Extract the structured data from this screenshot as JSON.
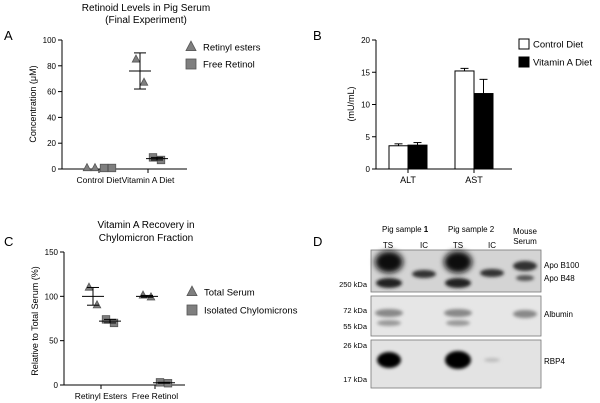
{
  "panel_labels": {
    "A": "A",
    "B": "B",
    "C": "C",
    "D": "D"
  },
  "colors": {
    "marker_fill": "#7f7f7f",
    "marker_stroke": "#555555",
    "bar_black": "#000000",
    "bar_white": "#ffffff"
  },
  "chart_data": [
    {
      "panel": "A",
      "type": "scatter",
      "title": "Retinoid Levels in Pig Serum",
      "subtitle": "(Final Experiment)",
      "ylabel": "Concentration (μM)",
      "xlabel": "",
      "categories": [
        "Control Diet",
        "Vitamin A Diet"
      ],
      "ylim": [
        0,
        100
      ],
      "yticks": [
        0,
        20,
        40,
        60,
        80,
        100
      ],
      "legend_position": "top-right",
      "series": [
        {
          "name": "Retinyl esters",
          "marker": "triangle",
          "points": [
            [
              0,
              0.8
            ],
            [
              0,
              0.8
            ],
            [
              1,
              85
            ],
            [
              1,
              67
            ]
          ],
          "mean": [
            0.8,
            76
          ],
          "sd": [
            0,
            14
          ]
        },
        {
          "name": "Free Retinol",
          "marker": "square",
          "points": [
            [
              0,
              0.8
            ],
            [
              0,
              0.8
            ],
            [
              1,
              9
            ],
            [
              1,
              7
            ]
          ],
          "mean": [
            0.8,
            8
          ],
          "sd": [
            0,
            1
          ]
        }
      ]
    },
    {
      "panel": "B",
      "type": "bar",
      "ylabel": "(mU/mL)",
      "xlabel": "",
      "categories": [
        "ALT",
        "AST"
      ],
      "ylim": [
        0,
        20
      ],
      "yticks": [
        0,
        5,
        10,
        15,
        20
      ],
      "legend_position": "top-right",
      "series": [
        {
          "name": "Control Diet",
          "color": "#ffffff",
          "values": [
            3.6,
            15.2
          ],
          "errors": [
            0.3,
            0.4
          ]
        },
        {
          "name": "Vitamin A Diet",
          "color": "#000000",
          "values": [
            3.7,
            11.7
          ],
          "errors": [
            0.4,
            2.2
          ]
        }
      ]
    },
    {
      "panel": "C",
      "type": "scatter",
      "title": "Vitamin A Recovery in",
      "subtitle": "Chylomicron Fraction",
      "ylabel": "Relative to Total Serum (%)",
      "xlabel": "",
      "categories": [
        "Retinyl Esters",
        "Free Retinol"
      ],
      "ylim": [
        0,
        150
      ],
      "yticks": [
        0,
        50,
        100,
        150
      ],
      "legend_position": "right",
      "series": [
        {
          "name": "Total Serum",
          "marker": "triangle",
          "points": [
            [
              0,
              110
            ],
            [
              0,
              90
            ],
            [
              1,
              101
            ],
            [
              1,
              99
            ]
          ],
          "mean": [
            100,
            100
          ],
          "sd": [
            10,
            1
          ]
        },
        {
          "name": "Isolated Chylomicrons",
          "marker": "square",
          "points": [
            [
              0,
              74
            ],
            [
              0,
              70
            ],
            [
              1,
              3
            ],
            [
              1,
              2
            ]
          ],
          "mean": [
            72,
            2.5
          ],
          "sd": [
            2,
            0.5
          ]
        }
      ]
    }
  ],
  "blot": {
    "group_labels": [
      "Pig sample ",
      "1",
      "Pig sample 2",
      "Mouse",
      "Serum"
    ],
    "lane_labels": [
      "TS",
      "IC",
      "TS",
      "IC"
    ],
    "left_markers": [
      "250 kDa",
      "72 kDa",
      "55 kDa",
      "26 kDa",
      "17 kDa"
    ],
    "right_labels": [
      "Apo B100",
      "Apo B48",
      "Albumin",
      "RBP4"
    ]
  }
}
